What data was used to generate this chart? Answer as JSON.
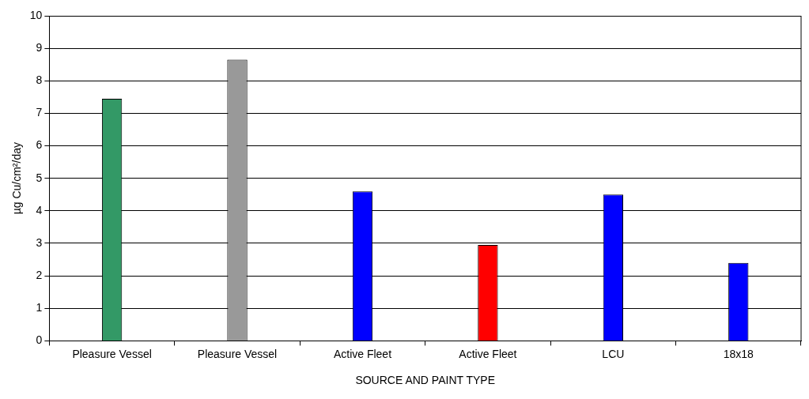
{
  "chart_data": {
    "type": "bar",
    "xlabel": "SOURCE AND PAINT TYPE",
    "ylabel": "µg Cu/cm²/day",
    "categories": [
      "Pleasure Vessel",
      "Pleasure Vessel",
      "Active Fleet",
      "Active Fleet",
      "LCU",
      "18x18"
    ],
    "values": [
      7.45,
      8.65,
      4.6,
      2.95,
      4.5,
      2.4
    ],
    "colors": [
      "#339966",
      "#999999",
      "#0000ff",
      "#ff0000",
      "#0000ff",
      "#0000ff"
    ],
    "ylim": [
      0,
      10
    ],
    "yticks": [
      0,
      1,
      2,
      3,
      4,
      5,
      6,
      7,
      8,
      9,
      10
    ],
    "grid": "y",
    "legend": false
  }
}
